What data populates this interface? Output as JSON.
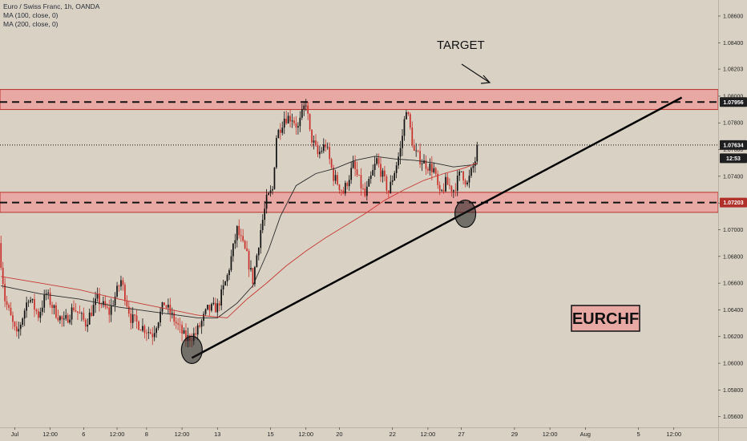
{
  "legend": {
    "title": "Euro / Swiss Franc, 1h, OANDA",
    "ma100": "MA (100, close, 0)",
    "ma200": "MA (200, close, 0)"
  },
  "annotations": {
    "target": "TARGET",
    "symbol": "EURCHF"
  },
  "colors": {
    "background": "#d9d1c4",
    "zone_fill": "#e8a9a4",
    "zone_border": "#b8312b",
    "ma100": "#2b2b2b",
    "ma200": "#c63a35",
    "candle_up": "#111111",
    "candle_down": "#c9322c",
    "label_dark": "#1f1f1f",
    "label_red": "#b2302a"
  },
  "chart_data": {
    "type": "candlestick",
    "ylim": [
      1.0552,
      1.0872
    ],
    "y_ticks": [
      "1.08600",
      "1.08400",
      "1.08203",
      "1.08000",
      "1.07800",
      "1.07600",
      "1.07400",
      "1.07200",
      "1.07000",
      "1.06800",
      "1.06600",
      "1.06400",
      "1.06200",
      "1.06000",
      "1.05800",
      "1.05600"
    ],
    "y_tick_values": [
      1.086,
      1.084,
      1.08203,
      1.08,
      1.078,
      1.076,
      1.074,
      1.072,
      1.07,
      1.068,
      1.066,
      1.064,
      1.062,
      1.06,
      1.058,
      1.056
    ],
    "x_ticks": [
      {
        "label": "Jul",
        "bar": 7
      },
      {
        "label": "12:00",
        "bar": 25
      },
      {
        "label": "6",
        "bar": 42
      },
      {
        "label": "12:00",
        "bar": 59
      },
      {
        "label": "8",
        "bar": 74
      },
      {
        "label": "12:00",
        "bar": 92
      },
      {
        "label": "13",
        "bar": 110
      },
      {
        "label": "15",
        "bar": 137
      },
      {
        "label": "12:00",
        "bar": 155
      },
      {
        "label": "20",
        "bar": 172
      },
      {
        "label": "22",
        "bar": 199
      },
      {
        "label": "12:00",
        "bar": 217
      },
      {
        "label": "27",
        "bar": 234
      },
      {
        "label": "29",
        "bar": 261
      },
      {
        "label": "12:00",
        "bar": 279
      },
      {
        "label": "Aug",
        "bar": 297
      },
      {
        "label": "5",
        "bar": 324
      },
      {
        "label": "12:00",
        "bar": 342
      }
    ],
    "bars_visible": 365,
    "price_labels": [
      {
        "text": "1.07956",
        "value": 1.07956,
        "style": "dark"
      },
      {
        "text": "1.07634",
        "value": 1.07634,
        "style": "dark"
      },
      {
        "text": "12:53",
        "value": 1.07535,
        "style": "dark"
      },
      {
        "text": "1.07203",
        "value": 1.07203,
        "style": "red"
      }
    ],
    "resistance_zone": [
      1.079,
      1.0805
    ],
    "resistance_level": 1.07956,
    "support_zone": [
      1.0713,
      1.0728
    ],
    "support_level": 1.07203,
    "last_price": 1.07634,
    "trendline": [
      {
        "bar": 97,
        "price": 1.0604
      },
      {
        "bar": 346,
        "price": 1.0799
      }
    ],
    "anchors": [
      {
        "waypoints": [
          [
            0,
            1.069
          ],
          [
            3,
            1.0648
          ],
          [
            9,
            1.062
          ],
          [
            15,
            1.065
          ],
          [
            20,
            1.0636
          ],
          [
            24,
            1.0652
          ],
          [
            28,
            1.064
          ],
          [
            33,
            1.063
          ],
          [
            38,
            1.0642
          ],
          [
            44,
            1.063
          ],
          [
            50,
            1.0648
          ],
          [
            56,
            1.0638
          ],
          [
            62,
            1.0662
          ],
          [
            67,
            1.0634
          ],
          [
            72,
            1.0628
          ],
          [
            78,
            1.0622
          ],
          [
            84,
            1.0645
          ],
          [
            90,
            1.063
          ],
          [
            95,
            1.0618
          ],
          [
            100,
            1.0622
          ],
          [
            106,
            1.064
          ],
          [
            111,
            1.0642
          ],
          [
            116,
            1.0665
          ],
          [
            121,
            1.07
          ],
          [
            126,
            1.068
          ],
          [
            129,
            1.0662
          ],
          [
            133,
            1.07
          ],
          [
            136,
            1.0722
          ],
          [
            139,
            1.073
          ],
          [
            141,
            1.077
          ],
          [
            145,
            1.0784
          ],
          [
            149,
            1.0784
          ],
          [
            152,
            1.0776
          ],
          [
            156,
            1.0796
          ],
          [
            158,
            1.0772
          ],
          [
            162,
            1.0756
          ],
          [
            166,
            1.0764
          ],
          [
            170,
            1.074
          ],
          [
            175,
            1.0728
          ],
          [
            180,
            1.0748
          ],
          [
            186,
            1.0725
          ],
          [
            192,
            1.0752
          ],
          [
            198,
            1.0728
          ],
          [
            204,
            1.076
          ],
          [
            207,
            1.0792
          ],
          [
            211,
            1.0758
          ],
          [
            216,
            1.075
          ],
          [
            221,
            1.0745
          ],
          [
            224,
            1.0725
          ],
          [
            227,
            1.0735
          ],
          [
            231,
            1.073
          ],
          [
            235,
            1.0744
          ],
          [
            238,
            1.0734
          ],
          [
            242,
            1.0752
          ]
        ]
      }
    ],
    "ma100_points": [
      [
        0,
        1.0658
      ],
      [
        20,
        1.0652
      ],
      [
        40,
        1.0648
      ],
      [
        60,
        1.0642
      ],
      [
        80,
        1.0638
      ],
      [
        100,
        1.0634
      ],
      [
        110,
        1.0634
      ],
      [
        120,
        1.0645
      ],
      [
        128,
        1.0658
      ],
      [
        136,
        1.0685
      ],
      [
        142,
        1.071
      ],
      [
        150,
        1.0733
      ],
      [
        160,
        1.0742
      ],
      [
        170,
        1.0746
      ],
      [
        180,
        1.0752
      ],
      [
        190,
        1.0755
      ],
      [
        200,
        1.0753
      ],
      [
        210,
        1.0752
      ],
      [
        220,
        1.075
      ],
      [
        230,
        1.0747
      ],
      [
        242,
        1.0749
      ]
    ],
    "ma200_points": [
      [
        0,
        1.0665
      ],
      [
        20,
        1.066
      ],
      [
        40,
        1.0655
      ],
      [
        60,
        1.0648
      ],
      [
        80,
        1.0642
      ],
      [
        100,
        1.0636
      ],
      [
        115,
        1.0634
      ],
      [
        125,
        1.0648
      ],
      [
        135,
        1.066
      ],
      [
        145,
        1.0673
      ],
      [
        155,
        1.0684
      ],
      [
        165,
        1.0694
      ],
      [
        175,
        1.0703
      ],
      [
        185,
        1.0712
      ],
      [
        195,
        1.0722
      ],
      [
        205,
        1.073
      ],
      [
        215,
        1.0737
      ],
      [
        225,
        1.0742
      ],
      [
        235,
        1.0746
      ],
      [
        242,
        1.075
      ]
    ],
    "ellipses": [
      {
        "bar": 97,
        "price": 1.061
      },
      {
        "bar": 236,
        "price": 1.0712
      }
    ]
  }
}
